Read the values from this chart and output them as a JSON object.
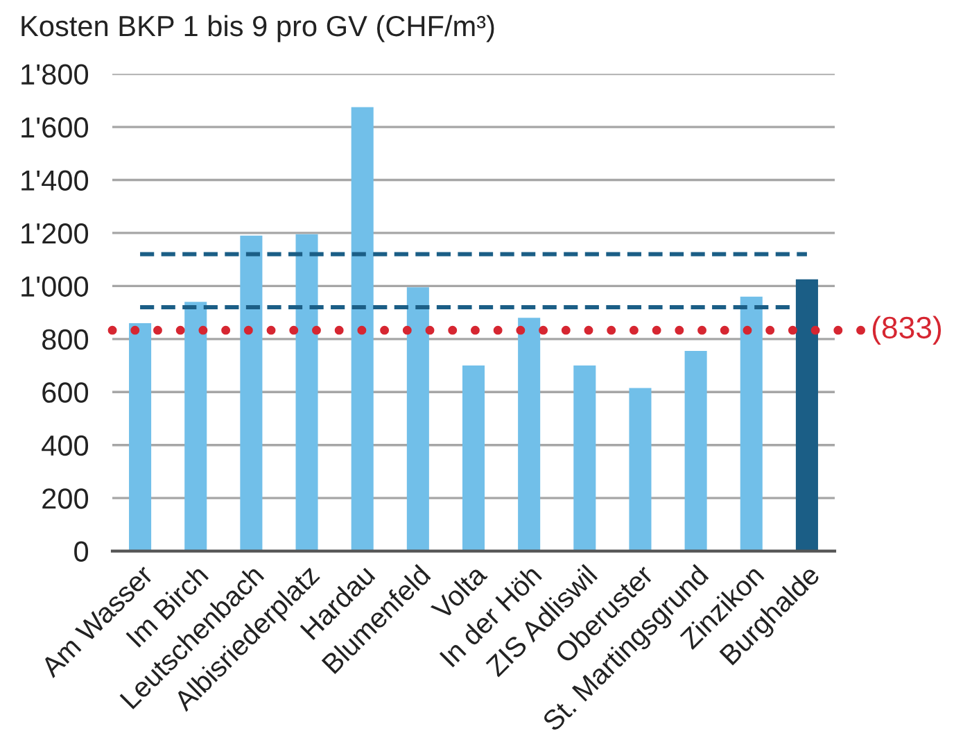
{
  "chart_data": {
    "type": "bar",
    "title": "Kosten BKP 1 bis 9 pro GV (CHF/m³)",
    "categories": [
      "Am Wasser",
      "Im Birch",
      "Leutschenbach",
      "Albisriederplatz",
      "Hardau",
      "Blumenfeld",
      "Volta",
      "In der Höh",
      "ZIS Adliswil",
      "Oberuster",
      "St. Martingsgrund",
      "Zinzikon",
      "Burghalde"
    ],
    "values": [
      860,
      940,
      1190,
      1195,
      1675,
      995,
      700,
      880,
      700,
      615,
      755,
      960,
      1025
    ],
    "colors": [
      "#71bfe9",
      "#71bfe9",
      "#71bfe9",
      "#71bfe9",
      "#71bfe9",
      "#71bfe9",
      "#71bfe9",
      "#71bfe9",
      "#71bfe9",
      "#71bfe9",
      "#71bfe9",
      "#71bfe9",
      "#1b5e86"
    ],
    "ylim": [
      0,
      1800
    ],
    "yticks": [
      0,
      200,
      400,
      600,
      800,
      {
        "value": 1000,
        "label": "1'000"
      },
      {
        "value": 1200,
        "label": "1'200"
      },
      {
        "value": 1400,
        "label": "1'400"
      },
      {
        "value": 1600,
        "label": "1'600"
      },
      {
        "value": 1800,
        "label": "1'800"
      }
    ],
    "grid": "y",
    "ref_lines": [
      {
        "axis": "y",
        "value": 1120,
        "color": "#1b5e86",
        "line_style": "dashed"
      },
      {
        "axis": "y",
        "value": 920,
        "color": "#1b5e86",
        "line_style": "dashed"
      },
      {
        "axis": "y",
        "value": 833,
        "label": "(833)",
        "color": "#d62631",
        "line_style": "dotted"
      }
    ]
  }
}
